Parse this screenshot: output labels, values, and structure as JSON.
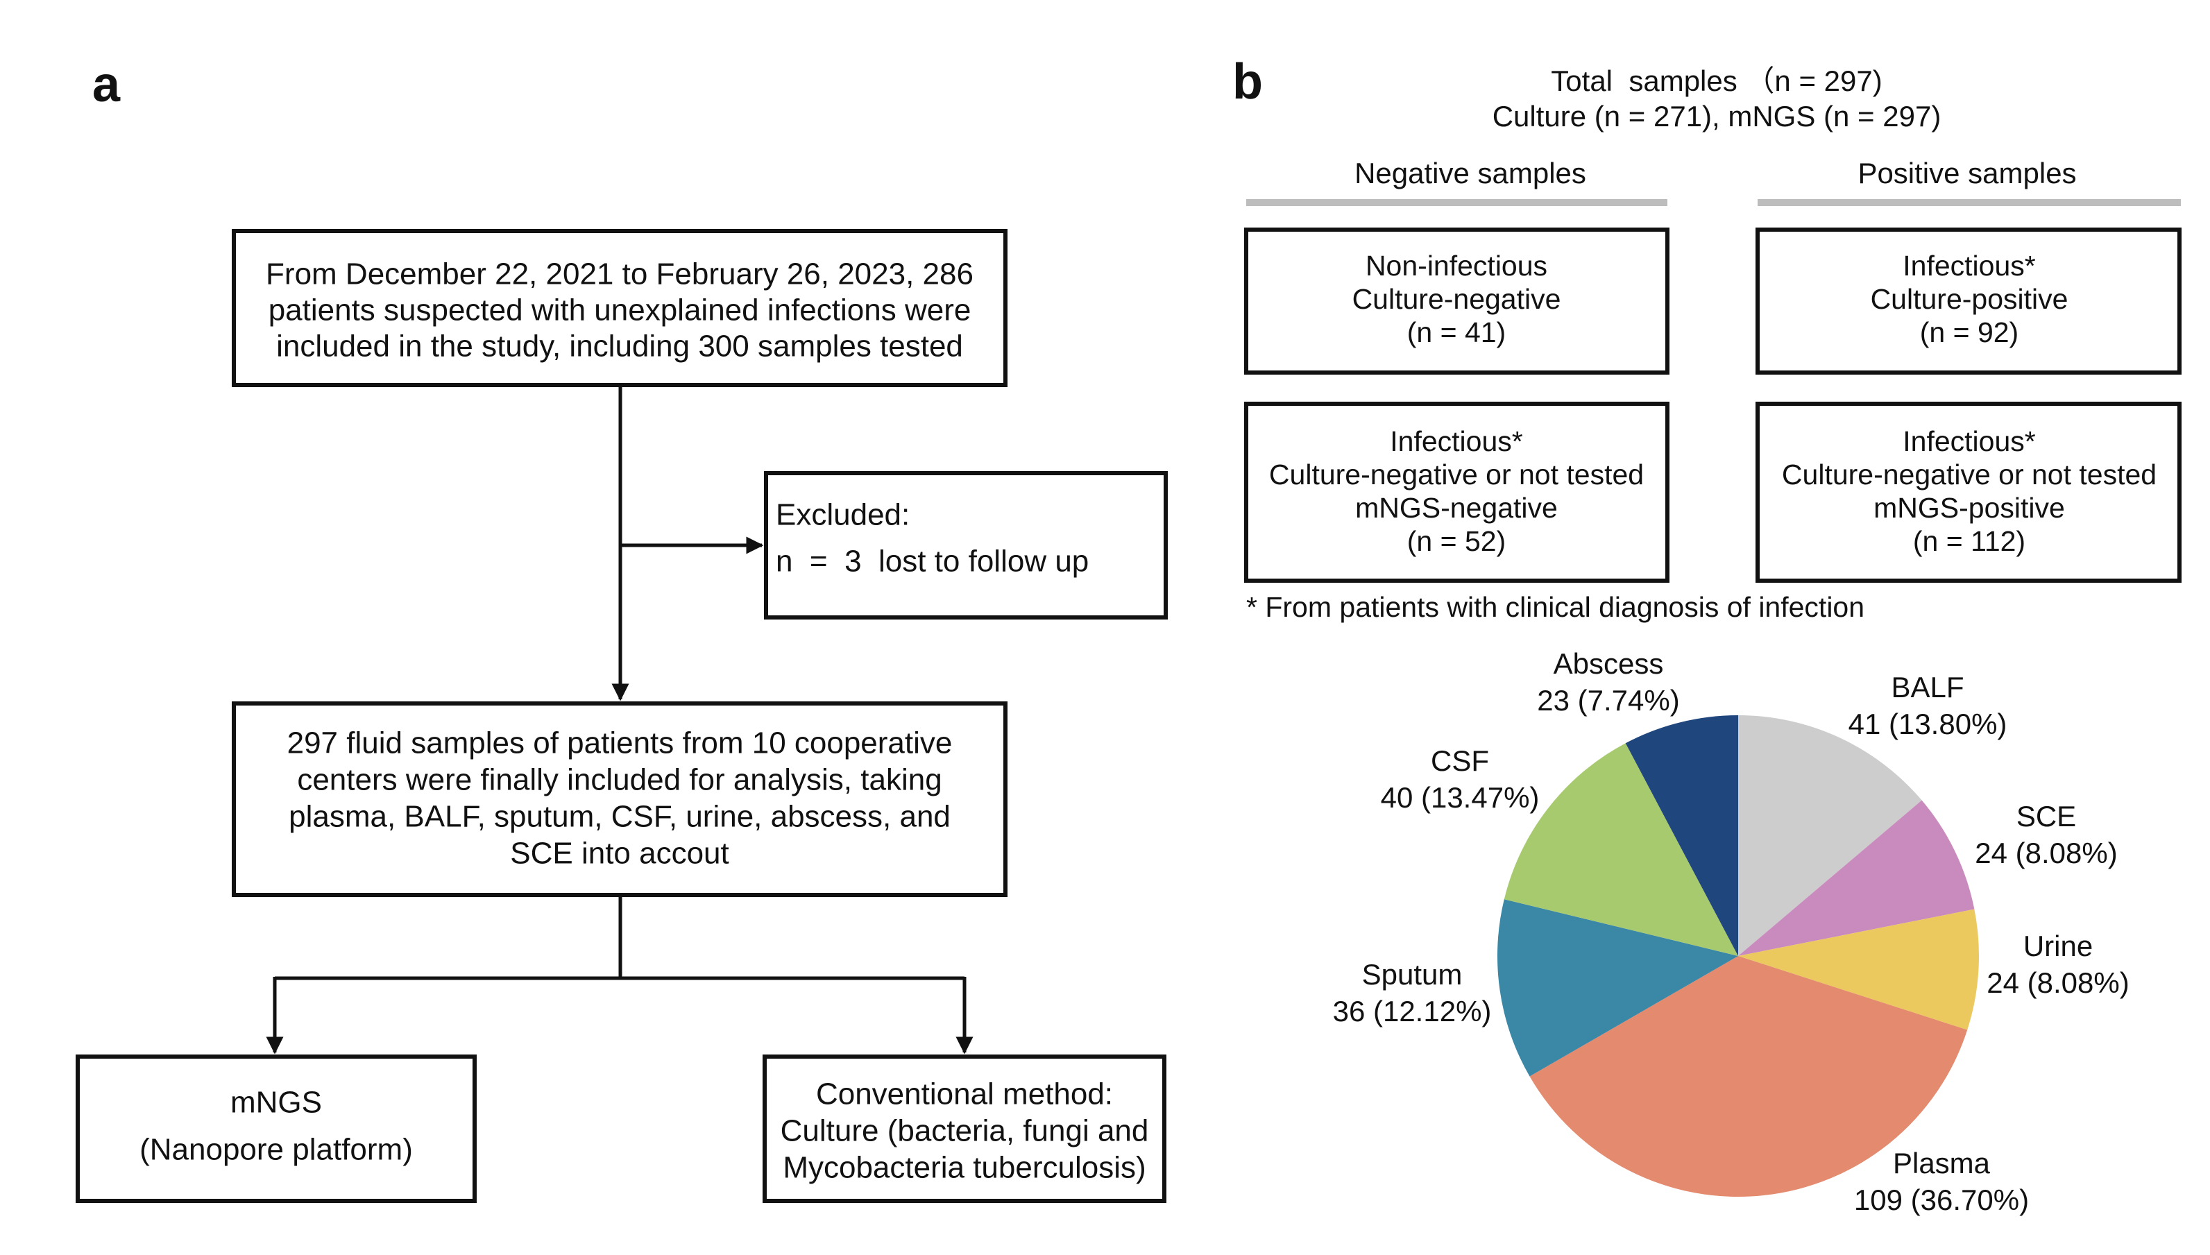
{
  "panel_a": {
    "label": "a",
    "boxes": [
      {
        "lines": [
          "From December 22, 2021 to February 26, 2023, 286",
          "patients suspected with unexplained infections were",
          "included in the study, including 300 samples tested"
        ]
      },
      {
        "lines": [
          "Excluded:",
          "n  =  3  lost to follow up"
        ]
      },
      {
        "lines": [
          "297 fluid samples of patients from 10 cooperative",
          "centers were finally included for analysis, taking",
          "plasma, BALF, sputum, CSF, urine, abscess, and",
          "SCE into accout"
        ]
      },
      {
        "lines": [
          "mNGS",
          "(Nanopore platform)"
        ]
      },
      {
        "lines": [
          "Conventional method:",
          "Culture (bacteria, fungi and",
          "Mycobacteria tuberculosis)"
        ]
      }
    ]
  },
  "panel_b": {
    "label": "b",
    "header": [
      "Total  samples （n = 297)",
      "Culture (n = 271), mNGS (n = 297)"
    ],
    "negative_title": "Negative samples",
    "positive_title": "Positive samples",
    "boxes": [
      {
        "lines": [
          "Non-infectious",
          "Culture-negative",
          "(n = 41)"
        ]
      },
      {
        "lines": [
          "Infectious*",
          "Culture-positive",
          "(n = 92)"
        ]
      },
      {
        "lines": [
          "Infectious*",
          "Culture-negative or not tested",
          "mNGS-negative",
          "(n = 52)"
        ]
      },
      {
        "lines": [
          "Infectious*",
          "Culture-negative or not tested",
          "mNGS-positive",
          "(n = 112)"
        ]
      }
    ],
    "footnote": "* From patients with clinical diagnosis of infection"
  },
  "chart_data": {
    "type": "pie",
    "categories": [
      "BALF",
      "SCE",
      "Urine",
      "Plasma",
      "Sputum",
      "CSF",
      "Abscess"
    ],
    "values": [
      41,
      24,
      24,
      109,
      36,
      40,
      23
    ],
    "value_labels": [
      "41 (13.80%)",
      "24 (8.08%)",
      "24 (8.08%)",
      "109 (36.70%)",
      "36 (12.12%)",
      "40 (13.47%)",
      "23 (7.74%)"
    ],
    "colors": [
      "#cdcdcd",
      "#c98bbd",
      "#ecc95f",
      "#e48a6f",
      "#3a87a6",
      "#a8ca6f",
      "#1f467d"
    ]
  }
}
